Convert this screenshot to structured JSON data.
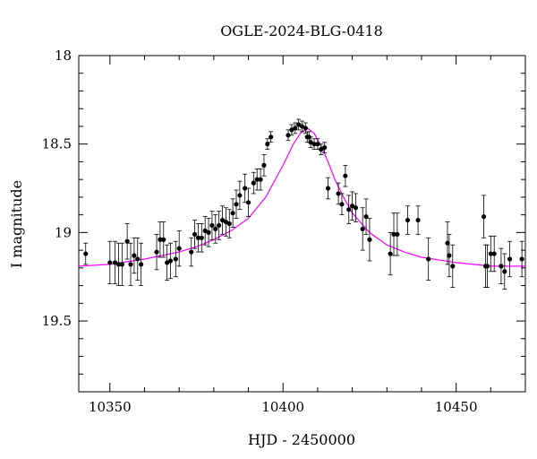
{
  "chart_data": {
    "type": "scatter",
    "title": "OGLE-2024-BLG-0418",
    "xlabel": "HJD - 2450000",
    "ylabel": "I magnitude",
    "xlim": [
      10341,
      10470
    ],
    "ylim": [
      18.0,
      19.9
    ],
    "y_inverted": true,
    "x_ticks": [
      10350,
      10400,
      10450
    ],
    "x_tick_labels": [
      "10350",
      "10400",
      "10450"
    ],
    "y_ticks": [
      18.0,
      18.5,
      19.0,
      19.5
    ],
    "y_tick_labels": [
      "18",
      "18.5",
      "19",
      "19.5"
    ],
    "grid": false,
    "model_curve": {
      "color": "#ff00ff",
      "points": [
        [
          10341,
          19.19
        ],
        [
          10350,
          19.18
        ],
        [
          10360,
          19.15
        ],
        [
          10370,
          19.11
        ],
        [
          10375,
          19.08
        ],
        [
          10380,
          19.04
        ],
        [
          10385,
          18.99
        ],
        [
          10390,
          18.92
        ],
        [
          10395,
          18.8
        ],
        [
          10400,
          18.62
        ],
        [
          10403,
          18.5
        ],
        [
          10405,
          18.44
        ],
        [
          10407,
          18.41
        ],
        [
          10409,
          18.44
        ],
        [
          10411,
          18.51
        ],
        [
          10413,
          18.6
        ],
        [
          10415,
          18.7
        ],
        [
          10418,
          18.82
        ],
        [
          10420,
          18.89
        ],
        [
          10425,
          19.0
        ],
        [
          10430,
          19.07
        ],
        [
          10435,
          19.11
        ],
        [
          10440,
          19.14
        ],
        [
          10450,
          19.17
        ],
        [
          10460,
          19.19
        ],
        [
          10470,
          19.19
        ]
      ]
    },
    "series": [
      {
        "marker": "filled-circle",
        "color": "#000000",
        "x": [
          10343.0,
          10350.0,
          10351.5,
          10352.5,
          10353.5,
          10355.0,
          10356.0,
          10357.0,
          10358.0,
          10359.0,
          10363.5,
          10364.5,
          10365.5,
          10366.5,
          10367.5,
          10369.0,
          10370.0,
          10373.5,
          10374.5,
          10375.5,
          10376.5,
          10377.5,
          10378.5,
          10379.5,
          10380.5,
          10381.5,
          10382.5,
          10383.5,
          10384.5,
          10385.5,
          10386.5,
          10387.5,
          10389.0,
          10390.0,
          10391.5,
          10392.5,
          10393.5,
          10394.5,
          10395.5,
          10396.5,
          10401.5,
          10402.5,
          10403.5,
          10404.5,
          10405.5,
          10406.5,
          10407.0,
          10407.5,
          10408.0,
          10409.0,
          10410.0,
          10411.0,
          10412.0,
          10413.0,
          10416.0,
          10417.0,
          10418.0,
          10419.0,
          10420.0,
          10421.0,
          10423.0,
          10424.0,
          10425.0,
          10431.0,
          10432.0,
          10433.0,
          10436.0,
          10439.0,
          10442.0,
          10447.5,
          10448.0,
          10449.0,
          10458.0,
          10458.5,
          10459.0,
          10460.0,
          10461.0,
          10463.0,
          10464.0,
          10465.5,
          10469.0
        ],
        "y": [
          19.12,
          19.17,
          19.17,
          19.18,
          19.18,
          19.05,
          19.18,
          19.13,
          19.15,
          19.18,
          19.11,
          19.04,
          19.04,
          19.17,
          19.16,
          19.15,
          19.09,
          19.11,
          19.01,
          19.03,
          19.03,
          18.99,
          19.0,
          18.96,
          18.98,
          18.96,
          18.93,
          18.94,
          18.95,
          18.89,
          18.84,
          18.79,
          18.75,
          18.83,
          18.72,
          18.7,
          18.7,
          18.62,
          18.5,
          18.46,
          18.45,
          18.42,
          18.41,
          18.39,
          18.4,
          18.41,
          18.46,
          18.46,
          18.49,
          18.5,
          18.5,
          18.53,
          18.52,
          18.75,
          18.78,
          18.84,
          18.68,
          18.87,
          18.85,
          18.86,
          18.98,
          18.91,
          19.04,
          19.12,
          19.01,
          19.01,
          18.93,
          18.93,
          19.15,
          19.06,
          19.13,
          19.19,
          18.91,
          19.19,
          19.19,
          19.12,
          19.12,
          19.19,
          19.22,
          19.15,
          19.15
        ],
        "yerr": [
          0.06,
          0.12,
          0.12,
          0.12,
          0.12,
          0.1,
          0.12,
          0.1,
          0.12,
          0.12,
          0.1,
          0.1,
          0.1,
          0.1,
          0.1,
          0.1,
          0.1,
          0.08,
          0.08,
          0.08,
          0.08,
          0.08,
          0.08,
          0.08,
          0.08,
          0.08,
          0.08,
          0.08,
          0.08,
          0.08,
          0.08,
          0.08,
          0.08,
          0.08,
          0.06,
          0.06,
          0.06,
          0.06,
          0.03,
          0.03,
          0.03,
          0.03,
          0.03,
          0.03,
          0.03,
          0.03,
          0.03,
          0.03,
          0.03,
          0.03,
          0.03,
          0.03,
          0.03,
          0.06,
          0.06,
          0.06,
          0.06,
          0.08,
          0.08,
          0.08,
          0.12,
          0.1,
          0.12,
          0.12,
          0.12,
          0.12,
          0.08,
          0.08,
          0.12,
          0.12,
          0.12,
          0.12,
          0.12,
          0.12,
          0.12,
          0.1,
          0.1,
          0.1,
          0.1,
          0.1,
          0.1
        ]
      }
    ]
  }
}
